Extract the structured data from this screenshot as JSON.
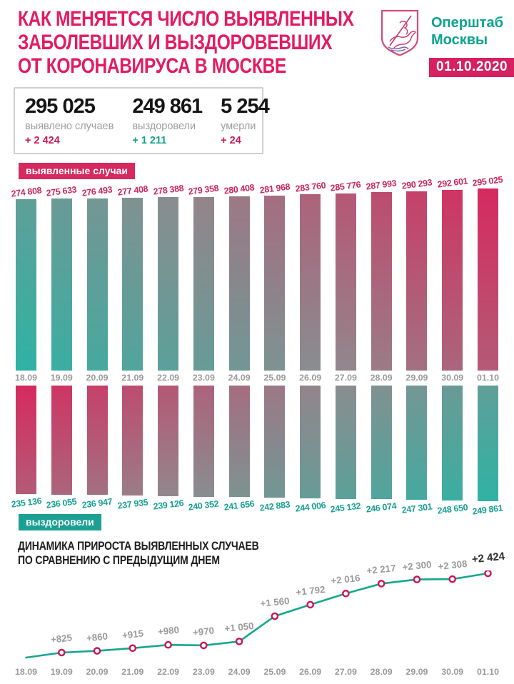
{
  "header": {
    "title_lines": [
      "КАК МЕНЯЕТСЯ ЧИСЛО ВЫЯВЛЕННЫХ",
      "ЗАБОЛЕВШИХ И ВЫЗДОРОВЕВШИХ",
      "ОТ КОРОНАВИРУСА В МОСКВЕ"
    ],
    "title_color": "#e31c62",
    "org_lines": [
      "Оперштаб",
      "Москвы"
    ],
    "org_color": "#0aa38e",
    "date_badge": "01.10.2020",
    "date_badge_bg": "#d6205f",
    "logo": "moscow-coat-of-arms"
  },
  "summary": {
    "cards": [
      {
        "value": "295 025",
        "label": "выявлено случаев",
        "delta": "+ 2 424",
        "delta_color": "#c6195c"
      },
      {
        "value": "249 861",
        "label": "выздоровели",
        "delta": "+ 1 211",
        "delta_color": "#16a08c"
      },
      {
        "value": "5 254",
        "label": "умерли",
        "delta": "+ 24",
        "delta_color": "#c6195c"
      }
    ]
  },
  "colors": {
    "pink": "#d62a5f",
    "teal": "#2fb2a4",
    "grey_mid": "#8f8b8e",
    "badge_pink": "#d62a5f",
    "badge_teal": "#1ba093",
    "axis_grey": "#9a9a9a"
  },
  "chart_data": [
    {
      "type": "bar",
      "name": "detected-cases",
      "badge": "выявленные случаи",
      "direction": "up",
      "categories": [
        "18.09",
        "19.09",
        "20.09",
        "21.09",
        "22.09",
        "23.09",
        "24.09",
        "25.09",
        "26.09",
        "27.09",
        "28.09",
        "29.09",
        "30.09",
        "01.10"
      ],
      "values": [
        274808,
        275633,
        276493,
        277408,
        278388,
        279358,
        280408,
        281968,
        283760,
        285776,
        287993,
        290293,
        292601,
        295025
      ],
      "value_labels": [
        "274 808",
        "275 633",
        "276 493",
        "277 408",
        "278 388",
        "279 358",
        "280 408",
        "281 968",
        "283 760",
        "285 776",
        "287 993",
        "290 293",
        "292 601",
        "295 025"
      ],
      "value_label_color": "#c9275c",
      "gradient": {
        "from": "#2fb2a4",
        "mid": "#8f8b8e",
        "to": "#d62a5f",
        "from_corner": "bottom-left",
        "to_corner": "top-right"
      }
    },
    {
      "type": "bar",
      "name": "recovered",
      "badge": "выздоровели",
      "direction": "down",
      "categories": [
        "18.09",
        "19.09",
        "20.09",
        "21.09",
        "22.09",
        "23.09",
        "24.09",
        "25.09",
        "26.09",
        "27.09",
        "28.09",
        "29.09",
        "30.09",
        "01.10"
      ],
      "values": [
        235136,
        236055,
        236947,
        237935,
        239126,
        240352,
        241656,
        242883,
        244006,
        245132,
        246074,
        247301,
        248650,
        249861
      ],
      "value_labels": [
        "235 136",
        "236 055",
        "236 947",
        "237 935",
        "239 126",
        "240 352",
        "241 656",
        "242 883",
        "244 006",
        "245 132",
        "246 074",
        "247 301",
        "248 650",
        "249 861"
      ],
      "value_label_color": "#189f92",
      "gradient": {
        "from": "#d62a5f",
        "mid": "#8f8b8e",
        "to": "#2fb2a4",
        "from_corner": "top-left",
        "to_corner": "bottom-right"
      }
    },
    {
      "type": "line",
      "name": "daily-increase",
      "title_lines": [
        "ДИНАМИКА ПРИРОСТА ВЫЯВЛЕННЫХ СЛУЧАЕВ",
        "ПО СРАВНЕНИЮ С ПРЕДЫДУЩИМ ДНЕМ"
      ],
      "categories": [
        "18.09",
        "19.09",
        "20.09",
        "21.09",
        "22.09",
        "23.09",
        "24.09",
        "25.09",
        "26.09",
        "27.09",
        "28.09",
        "29.09",
        "30.09",
        "01.10"
      ],
      "values": [
        null,
        825,
        860,
        915,
        980,
        970,
        1050,
        1560,
        1792,
        2016,
        2217,
        2300,
        2308,
        2424
      ],
      "value_labels": [
        null,
        "+825",
        "+860",
        "+915",
        "+980",
        "+970",
        "+1 050",
        "+1 560",
        "+1 792",
        "+2 016",
        "+2 217",
        "+2 300",
        "+2 308",
        "+2 424"
      ],
      "line_color": "#17a58f",
      "marker_ring_color": "#cb1657",
      "marker_fill": "#ffffff",
      "last_label_emphasized": true
    }
  ]
}
